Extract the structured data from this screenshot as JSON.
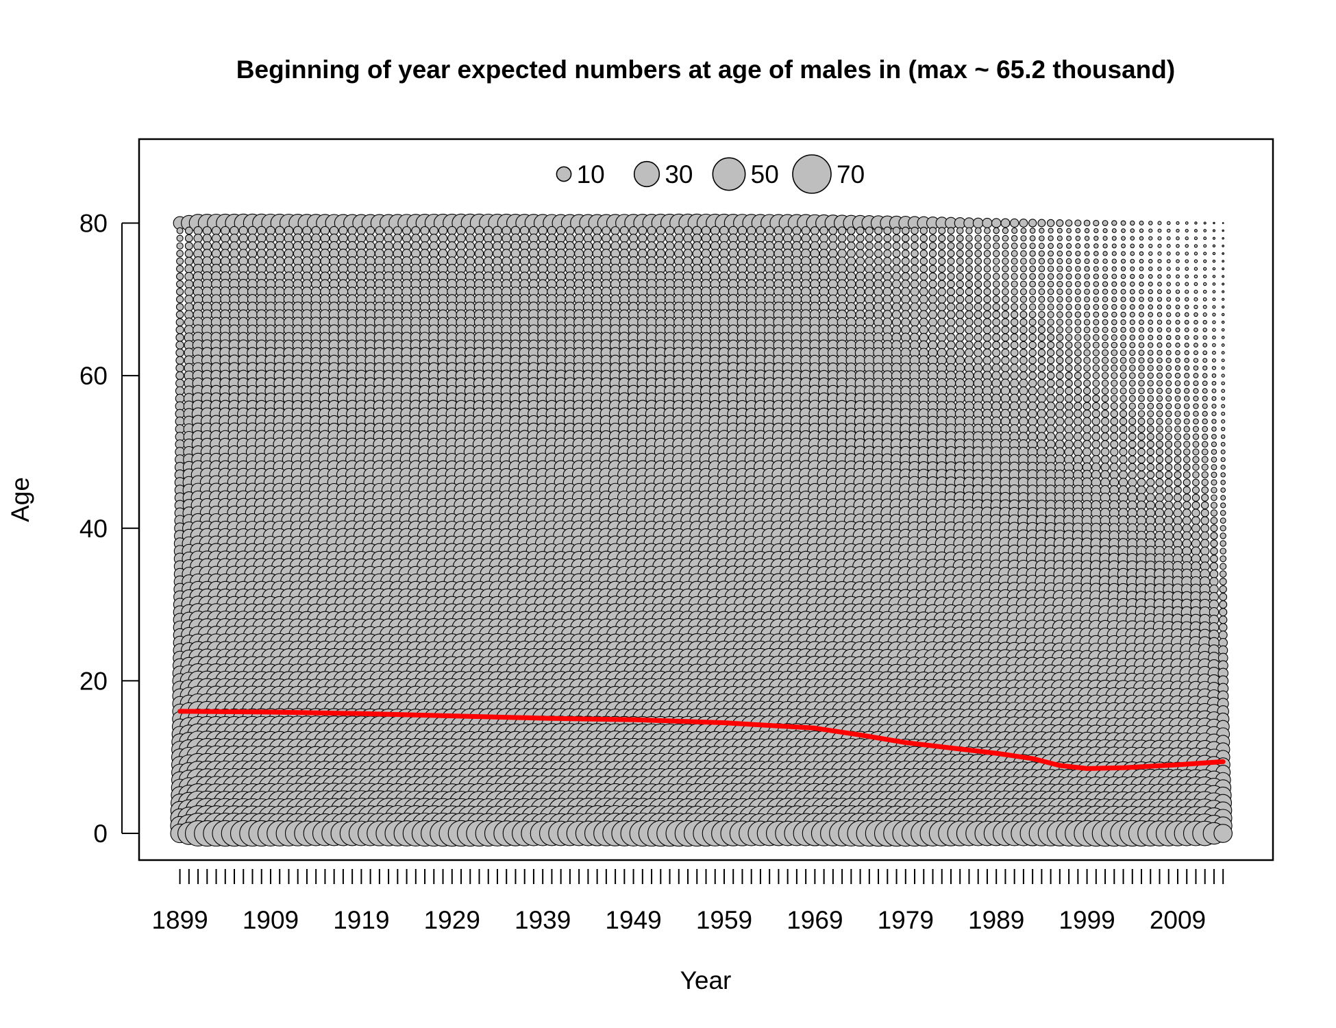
{
  "chart_data": {
    "type": "scatter",
    "subtype": "bubble",
    "title": "Beginning of year expected numbers at age of males in (max ~ 65.2 thousand)",
    "xlabel": "Year",
    "ylabel": "Age",
    "xlim": [
      1894.5,
      2019.5
    ],
    "ylim": [
      -3.5,
      91
    ],
    "x_ticks": [
      1899,
      1909,
      1919,
      1929,
      1939,
      1949,
      1959,
      1969,
      1979,
      1989,
      1999,
      2009
    ],
    "y_ticks": [
      0,
      20,
      40,
      60,
      80
    ],
    "year_range": [
      1899,
      2014
    ],
    "age_range": [
      0,
      80
    ],
    "bubble_fill_color": "#bebebe",
    "bubble_stroke_color": "#000000",
    "grid": false,
    "legend": {
      "position": "top-center",
      "entries": [
        {
          "label": "10",
          "value": 10
        },
        {
          "label": "30",
          "value": 30
        },
        {
          "label": "50",
          "value": 50
        },
        {
          "label": "70",
          "value": 70
        }
      ]
    },
    "mean_age_line": {
      "color": "#ff0000",
      "points": [
        [
          1899,
          16.0
        ],
        [
          1909,
          15.9
        ],
        [
          1919,
          15.7
        ],
        [
          1929,
          15.4
        ],
        [
          1939,
          15.1
        ],
        [
          1949,
          14.9
        ],
        [
          1959,
          14.5
        ],
        [
          1969,
          13.8
        ],
        [
          1974,
          12.9
        ],
        [
          1979,
          11.9
        ],
        [
          1984,
          11.2
        ],
        [
          1989,
          10.5
        ],
        [
          1993,
          9.8
        ],
        [
          1996,
          8.9
        ],
        [
          1999,
          8.5
        ],
        [
          2003,
          8.6
        ],
        [
          2009,
          9.0
        ],
        [
          2014,
          9.4
        ]
      ]
    }
  }
}
